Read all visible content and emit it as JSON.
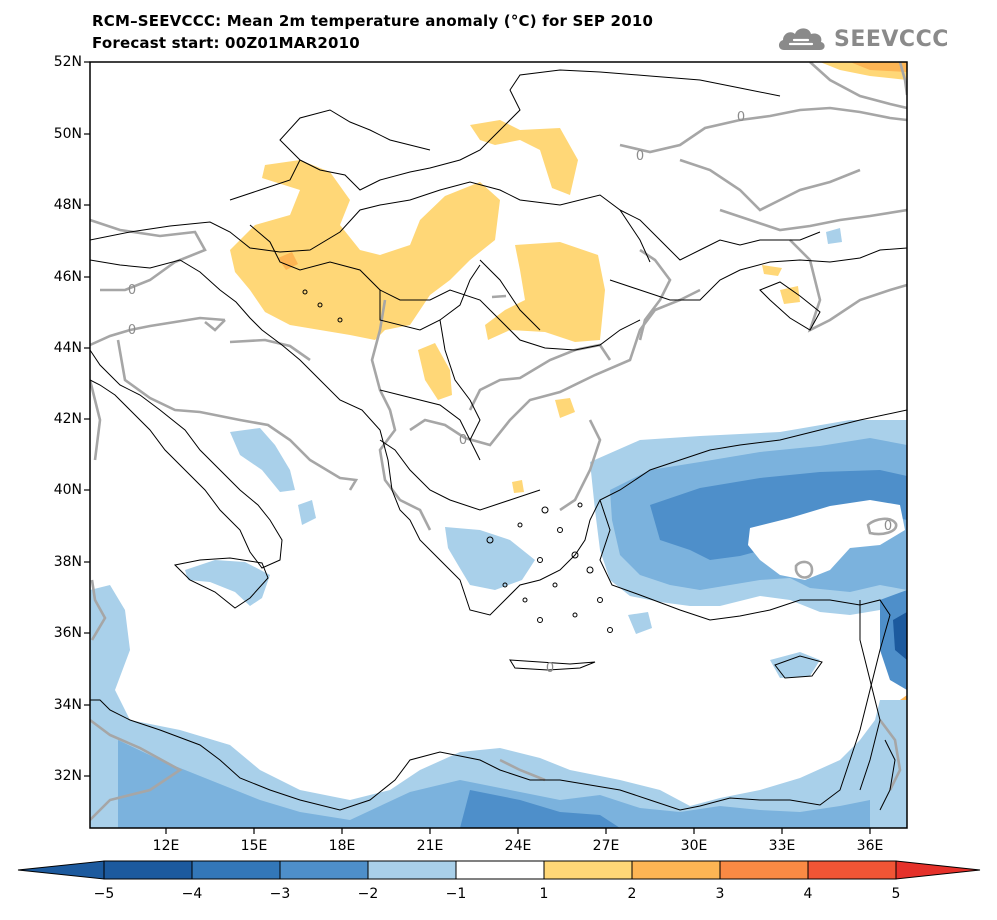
{
  "title": {
    "line1": "RCM–SEEVCCC: Mean 2m temperature anomaly (°C) for SEP 2010",
    "line2": "Forecast start: 00Z01MAR2010"
  },
  "logo": {
    "text": "SEEVCCC",
    "icon": "cloud-logo-icon"
  },
  "map": {
    "variable": "Mean 2m temperature anomaly",
    "units": "°C",
    "lat_labels": [
      "52N",
      "50N",
      "48N",
      "46N",
      "44N",
      "42N",
      "40N",
      "38N",
      "36N",
      "34N",
      "32N"
    ],
    "lon_labels": [
      "12E",
      "15E",
      "18E",
      "21E",
      "24E",
      "27E",
      "30E",
      "33E",
      "36E"
    ],
    "contour_labels": [
      "0",
      "0",
      "0",
      "0",
      "0",
      "0",
      "0"
    ]
  },
  "colorbar": {
    "labels": [
      "−5",
      "−4",
      "−3",
      "−2",
      "−1",
      "1",
      "2",
      "3",
      "4",
      "5"
    ],
    "colors": [
      "#1c5a9e",
      "#3377b8",
      "#4e8fca",
      "#7bb2dd",
      "#a9d0ea",
      "#ffffff",
      "#ffd777",
      "#fdb554",
      "#fa8a44",
      "#f05535",
      "#e5312a"
    ],
    "extend_low_color": "#1c5a9e",
    "extend_high_color": "#e5312a"
  }
}
